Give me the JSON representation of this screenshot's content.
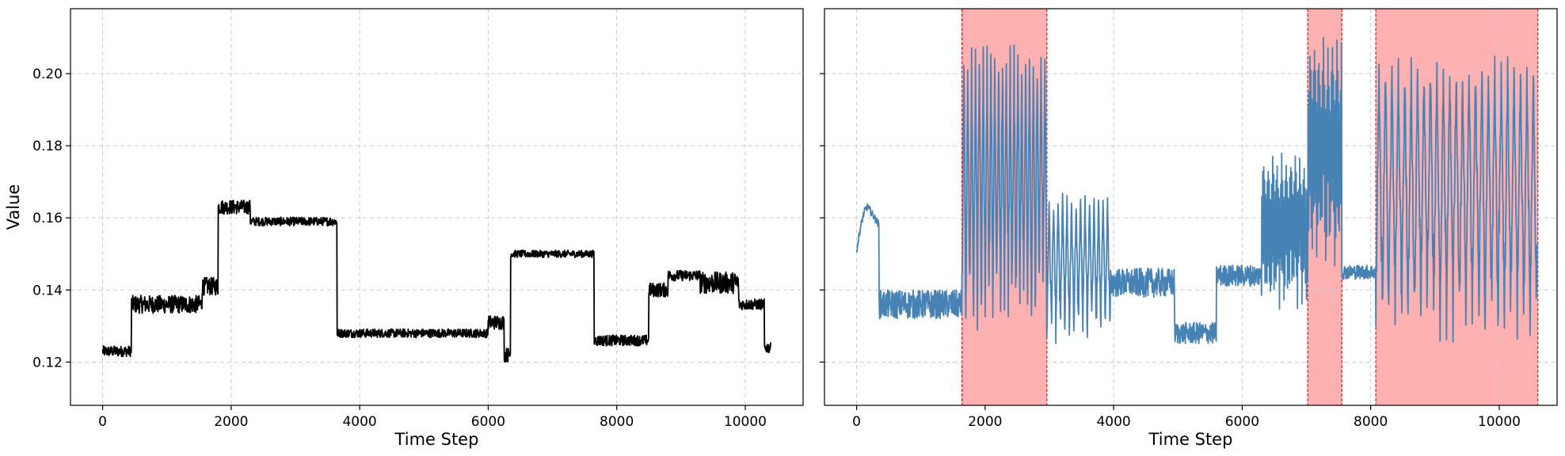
{
  "chart_data": [
    {
      "type": "line",
      "xlabel": "Time Step",
      "ylabel": "Value",
      "xlim": [
        -500,
        10900
      ],
      "ylim": [
        0.108,
        0.218
      ],
      "xticks": [
        0,
        2000,
        4000,
        6000,
        8000,
        10000
      ],
      "yticks": [
        0.12,
        0.14,
        0.16,
        0.18,
        0.2
      ],
      "xtick_labels": [
        "0",
        "2000",
        "4000",
        "6000",
        "8000",
        "10000"
      ],
      "ytick_labels": [
        "0.12",
        "0.14",
        "0.16",
        "0.18",
        "0.20"
      ],
      "grid": true,
      "series": [
        {
          "color": "#000000",
          "segments": [
            {
              "x0": 0,
              "x1": 450,
              "level": 0.123,
              "noise": 0.0015
            },
            {
              "x0": 450,
              "x1": 1550,
              "level": 0.136,
              "noise": 0.0025
            },
            {
              "x0": 1550,
              "x1": 1800,
              "level": 0.141,
              "noise": 0.0025
            },
            {
              "x0": 1800,
              "x1": 2300,
              "level": 0.163,
              "noise": 0.002
            },
            {
              "x0": 2300,
              "x1": 3650,
              "level": 0.159,
              "noise": 0.0012
            },
            {
              "x0": 3650,
              "x1": 6000,
              "level": 0.128,
              "noise": 0.0012
            },
            {
              "x0": 6000,
              "x1": 6250,
              "level": 0.131,
              "noise": 0.002
            },
            {
              "x0": 6250,
              "x1": 6350,
              "level": 0.122,
              "noise": 0.002
            },
            {
              "x0": 6350,
              "x1": 7650,
              "level": 0.15,
              "noise": 0.001
            },
            {
              "x0": 7650,
              "x1": 8500,
              "level": 0.126,
              "noise": 0.0015
            },
            {
              "x0": 8500,
              "x1": 8800,
              "level": 0.14,
              "noise": 0.002
            },
            {
              "x0": 8800,
              "x1": 9300,
              "level": 0.144,
              "noise": 0.0015
            },
            {
              "x0": 9300,
              "x1": 9900,
              "level": 0.142,
              "noise": 0.003
            },
            {
              "x0": 9900,
              "x1": 10300,
              "level": 0.136,
              "noise": 0.0015
            },
            {
              "x0": 10300,
              "x1": 10400,
              "level": 0.124,
              "noise": 0.0015
            }
          ]
        }
      ]
    },
    {
      "type": "line",
      "xlabel": "Time Step",
      "ylabel": "",
      "xlim": [
        -500,
        10900
      ],
      "ylim": [
        0.108,
        0.218
      ],
      "xticks": [
        0,
        2000,
        4000,
        6000,
        8000,
        10000
      ],
      "xtick_labels": [
        "0",
        "2000",
        "4000",
        "6000",
        "8000",
        "10000"
      ],
      "grid": true,
      "highlight_color": "#ffb0b0",
      "highlight_edge_color": "#e8242a",
      "highlight_regions": [
        [
          1640,
          2960
        ],
        [
          7020,
          7550
        ],
        [
          8080,
          10600
        ]
      ],
      "series": [
        {
          "color": "#4682b4",
          "segments": [
            {
              "x0": 0,
              "x1": 350,
              "kind": "bump",
              "start": 0.151,
              "peak": 0.163,
              "end": 0.158
            },
            {
              "x0": 350,
              "x1": 1640,
              "kind": "noise",
              "level": 0.136,
              "noise": 0.004
            },
            {
              "x0": 1640,
              "x1": 2960,
              "kind": "osc",
              "low": 0.127,
              "high": 0.208,
              "period": 60
            },
            {
              "x0": 2960,
              "x1": 3950,
              "kind": "osc",
              "low": 0.125,
              "high": 0.167,
              "period": 70
            },
            {
              "x0": 3950,
              "x1": 4950,
              "kind": "noise",
              "level": 0.142,
              "noise": 0.004
            },
            {
              "x0": 4950,
              "x1": 5600,
              "kind": "noise",
              "level": 0.128,
              "noise": 0.003
            },
            {
              "x0": 5600,
              "x1": 6300,
              "kind": "noise",
              "level": 0.144,
              "noise": 0.003
            },
            {
              "x0": 6300,
              "x1": 7020,
              "kind": "osc",
              "low": 0.134,
              "high": 0.178,
              "period": 14
            },
            {
              "x0": 7020,
              "x1": 7550,
              "kind": "osc",
              "low": 0.146,
              "high": 0.21,
              "period": 14
            },
            {
              "x0": 7550,
              "x1": 8080,
              "kind": "noise",
              "level": 0.145,
              "noise": 0.002
            },
            {
              "x0": 8080,
              "x1": 10600,
              "kind": "osc",
              "low": 0.125,
              "high": 0.205,
              "period": 100
            }
          ]
        }
      ]
    }
  ]
}
